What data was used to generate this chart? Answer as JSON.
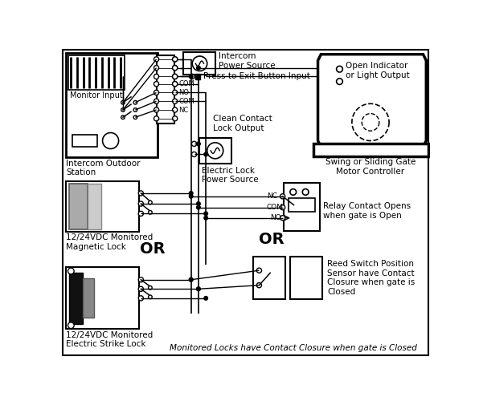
{
  "bg": "#ffffff",
  "figsize": [
    5.96,
    5.0
  ],
  "dpi": 100,
  "labels": {
    "monitor_input": "Monitor Input",
    "intercom_outdoor": "Intercom Outdoor\nStation",
    "intercom_power": "Intercom\nPower Source",
    "press_exit": "Press to Exit Button Input",
    "clean_contact": "Clean Contact\nLock Output",
    "elec_lock_ps": "Electric Lock\nPower Source",
    "mag_lock": "12/24VDC Monitored\nMagnetic Lock",
    "strike_lock": "12/24VDC Monitored\nElectric Strike Lock",
    "relay_contact": "Relay Contact Opens\nwhen gate is Open",
    "reed_switch": "Reed Switch Position\nSensor have Contact\nClosure when gate is\nClosed",
    "swing_gate": "Swing or Sliding Gate\nMotor Controller",
    "open_indicator": "Open Indicator\nor Light Output",
    "or1": "OR",
    "or2": "OR",
    "com_tb": "COM",
    "no_tb": "NO",
    "com2_tb": "COM",
    "nc_tb": "NC",
    "nc_relay": "NC",
    "com_relay": "COM",
    "no_relay": "NO",
    "bottom_note": "Monitored Locks have Contact Closure when gate is Closed"
  }
}
